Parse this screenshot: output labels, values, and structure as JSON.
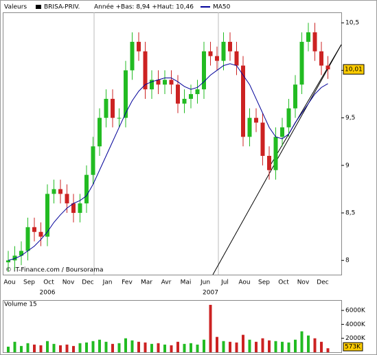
{
  "chart_data": [
    {
      "type": "candlestick",
      "header": "Valeurs",
      "legend": [
        "BRISA-PRIV.",
        "MA50"
      ],
      "range_note": "Année +Bas: 8,94 +Haut: 10,46",
      "credit": "© IT-Finance.com / Boursorama",
      "categories": [
        "Aou",
        null,
        null,
        "Sep",
        null,
        null,
        "Oct",
        null,
        null,
        "Nov",
        null,
        null,
        "Dec",
        null,
        null,
        "Jan",
        null,
        null,
        "Fev",
        null,
        null,
        "Mar",
        null,
        null,
        "Avr",
        null,
        null,
        "Mai",
        null,
        null,
        "Jun",
        null,
        null,
        "Jul",
        null,
        null,
        "Aou",
        null,
        null,
        "Sep",
        null,
        null,
        "Oct",
        null,
        null,
        "Nov",
        null,
        null,
        "Dec",
        null
      ],
      "years": [
        null,
        null,
        null,
        null,
        null,
        null,
        "2006",
        null,
        null,
        null,
        null,
        null,
        null,
        null,
        null,
        null,
        null,
        null,
        null,
        null,
        null,
        null,
        null,
        null,
        null,
        null,
        null,
        null,
        null,
        null,
        null,
        "2007",
        null,
        null,
        null,
        null,
        null,
        null,
        null,
        null,
        null,
        null,
        null,
        null,
        null,
        null,
        null,
        null,
        null,
        null
      ],
      "open": [
        7.98,
        8.0,
        8.05,
        8.1,
        8.35,
        8.3,
        8.25,
        8.7,
        8.75,
        8.7,
        8.6,
        8.5,
        8.6,
        8.9,
        9.2,
        9.5,
        9.7,
        9.5,
        9.5,
        10.0,
        10.3,
        10.2,
        9.8,
        9.9,
        9.85,
        9.9,
        9.85,
        9.65,
        9.7,
        9.75,
        9.8,
        10.2,
        10.15,
        10.1,
        10.3,
        10.2,
        10.05,
        9.3,
        9.5,
        9.45,
        9.1,
        8.95,
        9.3,
        9.4,
        9.6,
        9.85,
        10.3,
        10.4,
        10.2,
        10.05
      ],
      "high": [
        8.1,
        8.15,
        8.2,
        8.45,
        8.45,
        8.4,
        8.8,
        8.85,
        8.85,
        8.8,
        8.7,
        8.7,
        9.0,
        9.3,
        9.6,
        9.8,
        9.8,
        9.6,
        10.1,
        10.4,
        10.4,
        10.3,
        10.0,
        10.0,
        10.0,
        10.0,
        9.95,
        9.8,
        9.85,
        9.9,
        10.3,
        10.3,
        10.25,
        10.4,
        10.4,
        10.3,
        10.15,
        9.6,
        9.6,
        9.55,
        9.2,
        9.4,
        9.5,
        9.7,
        9.95,
        10.4,
        10.5,
        10.5,
        10.3,
        10.15
      ],
      "low": [
        7.88,
        7.9,
        7.95,
        8.0,
        8.2,
        8.15,
        8.15,
        8.6,
        8.6,
        8.5,
        8.4,
        8.4,
        8.5,
        8.8,
        9.1,
        9.4,
        9.4,
        9.4,
        9.4,
        9.9,
        10.1,
        9.7,
        9.7,
        9.75,
        9.75,
        9.75,
        9.55,
        9.55,
        9.6,
        9.65,
        9.7,
        10.05,
        10.0,
        10.0,
        10.1,
        9.95,
        9.2,
        9.2,
        9.35,
        9.0,
        8.85,
        8.85,
        9.2,
        9.3,
        9.5,
        9.75,
        10.2,
        10.1,
        9.95,
        9.91
      ],
      "close": [
        8.0,
        8.05,
        8.1,
        8.35,
        8.3,
        8.25,
        8.7,
        8.75,
        8.7,
        8.6,
        8.5,
        8.6,
        8.9,
        9.2,
        9.5,
        9.7,
        9.5,
        9.5,
        10.0,
        10.3,
        10.2,
        9.8,
        9.9,
        9.85,
        9.9,
        9.85,
        9.65,
        9.7,
        9.75,
        9.8,
        10.2,
        10.15,
        10.1,
        10.3,
        10.2,
        10.05,
        9.3,
        9.5,
        9.45,
        9.1,
        8.95,
        9.3,
        9.4,
        9.6,
        9.85,
        10.3,
        10.4,
        10.2,
        10.05,
        10.01
      ],
      "last_label": "10,01",
      "ma": [
        8.0,
        8.02,
        8.05,
        8.1,
        8.15,
        8.22,
        8.3,
        8.4,
        8.48,
        8.55,
        8.6,
        8.63,
        8.68,
        8.8,
        8.95,
        9.1,
        9.25,
        9.4,
        9.55,
        9.68,
        9.78,
        9.85,
        9.88,
        9.9,
        9.92,
        9.92,
        9.88,
        9.83,
        9.8,
        9.82,
        9.88,
        9.95,
        10.0,
        10.05,
        10.07,
        10.05,
        9.95,
        9.85,
        9.7,
        9.55,
        9.4,
        9.3,
        9.28,
        9.33,
        9.45,
        9.55,
        9.65,
        9.75,
        9.82,
        9.86
      ],
      "colors": {
        "up": "#22bb22",
        "down": "#cc2222",
        "ma": "#000099"
      },
      "ylim": [
        7.85,
        10.61
      ],
      "yticks": [
        8,
        {
          "value": 8.5,
          "label": "8,5"
        },
        9,
        {
          "value": 9.5,
          "label": "9,5"
        },
        10,
        {
          "value": 10.5,
          "label": "10,5"
        }
      ]
    },
    {
      "type": "bar",
      "title": "Volume 15",
      "values": [
        800000,
        1500000,
        900000,
        1300000,
        1100000,
        1000000,
        1600000,
        1200000,
        1000000,
        1100000,
        900000,
        1300000,
        1400000,
        1600000,
        1800000,
        1500000,
        1200000,
        1300000,
        2000000,
        1700000,
        1500000,
        1400000,
        1200000,
        1300000,
        1100000,
        1000000,
        1500000,
        1200000,
        1300000,
        1100000,
        1800000,
        6800000,
        2200000,
        1600000,
        1500000,
        1400000,
        2500000,
        1800000,
        1500000,
        2000000,
        1700000,
        1600000,
        1500000,
        1400000,
        1800000,
        3000000,
        2400000,
        2000000,
        1500000,
        573000
      ],
      "last_label": "573K",
      "ylim": [
        0,
        6500000
      ],
      "yticks": [
        {
          "value": 2000000,
          "label": "2000K"
        },
        {
          "value": 4000000,
          "label": "4000K"
        },
        {
          "value": 6000000,
          "label": "6000K"
        }
      ]
    }
  ]
}
